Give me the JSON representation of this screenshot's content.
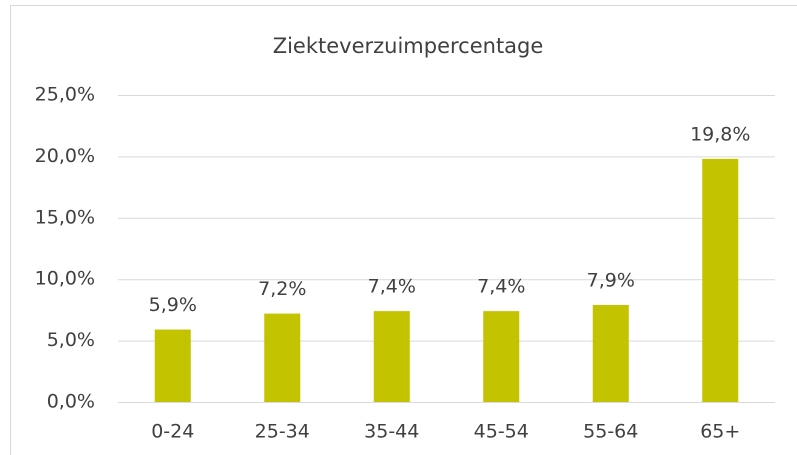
{
  "chart_data": {
    "type": "bar",
    "title": "Ziekteverzuimpercentage",
    "categories": [
      "0-24",
      "25-34",
      "35-44",
      "45-54",
      "55-64",
      "65+"
    ],
    "values": [
      5.9,
      7.2,
      7.4,
      7.4,
      7.9,
      19.8
    ],
    "value_labels": [
      "5,9%",
      "7,2%",
      "7,4%",
      "7,4%",
      "7,9%",
      "19,8%"
    ],
    "color": "#c3c300",
    "ylim": [
      0,
      25
    ],
    "yticks": [
      {
        "value": 0,
        "label": "0,0%"
      },
      {
        "value": 5,
        "label": "5,0%"
      },
      {
        "value": 10,
        "label": "10,0%"
      },
      {
        "value": 15,
        "label": "15,0%"
      },
      {
        "value": 20,
        "label": "20,0%"
      },
      {
        "value": 25,
        "label": "25,0%"
      }
    ],
    "grid": true
  }
}
